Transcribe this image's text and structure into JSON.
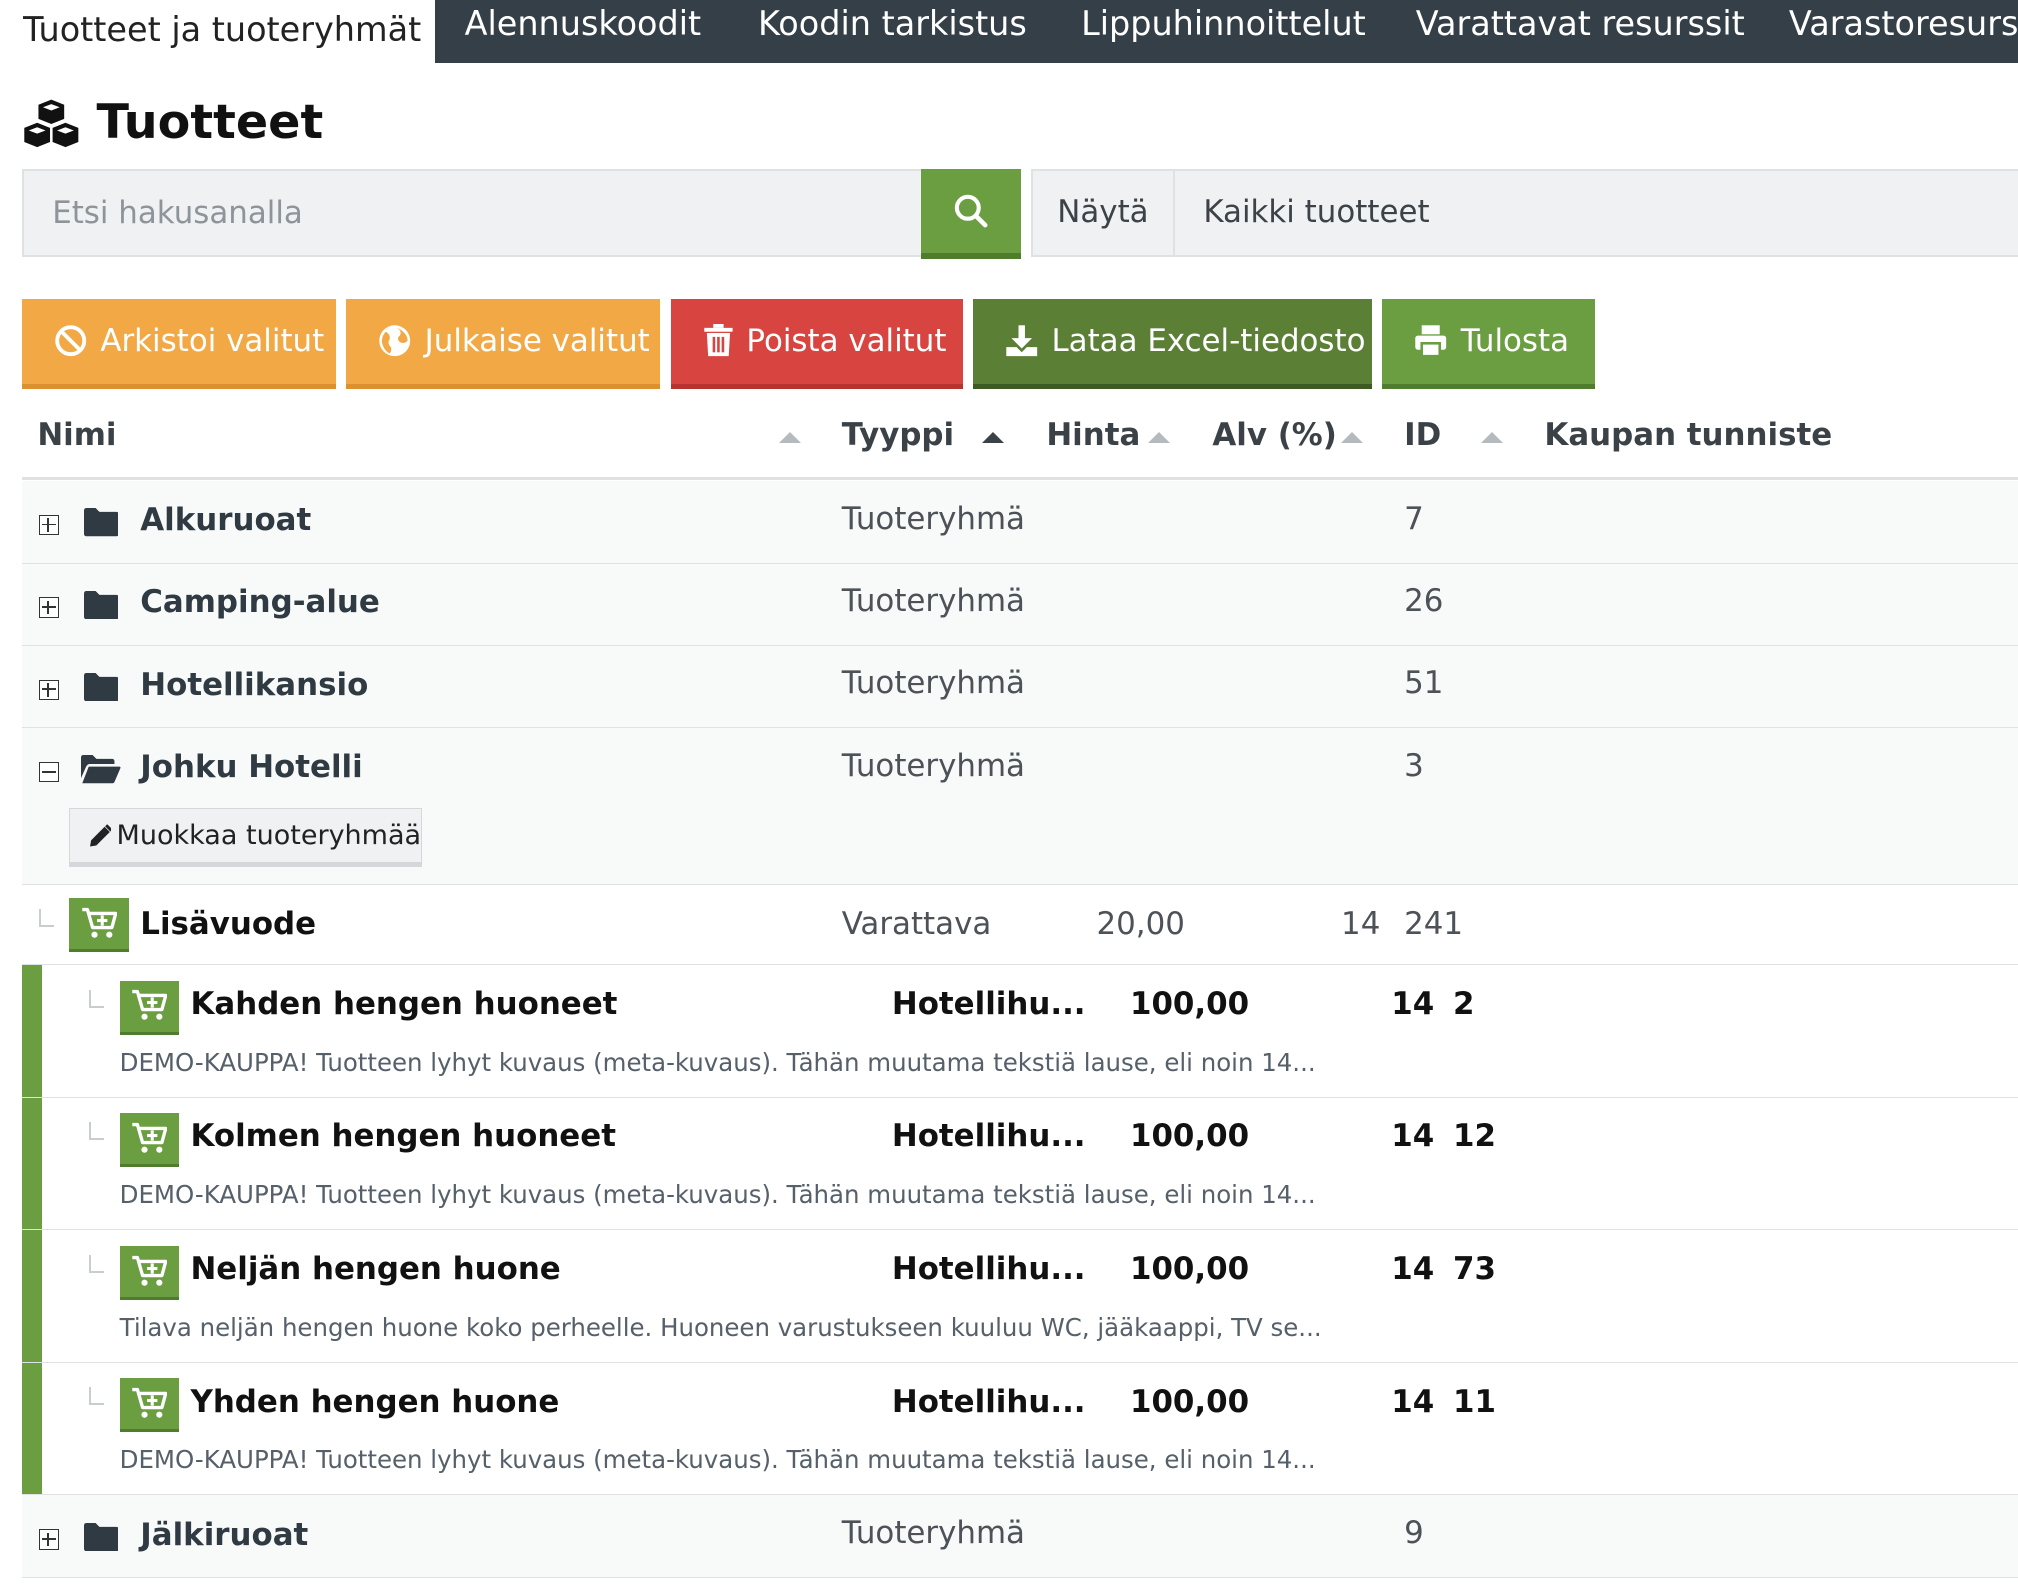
{
  "tabs": [
    {
      "label": "Tuotteet ja tuoteryhmät"
    },
    {
      "label": "Alennuskoodit"
    },
    {
      "label": "Koodin tarkistus"
    },
    {
      "label": "Lippuhinnoittelut"
    },
    {
      "label": "Varattavat resurssit"
    },
    {
      "label": "Varastoresurssit"
    }
  ],
  "page": {
    "title": "Tuotteet"
  },
  "search": {
    "placeholder": "Etsi hakusanalla"
  },
  "filter": {
    "label": "Näytä",
    "selected": "Kaikki tuotteet"
  },
  "actions": {
    "archive": "Arkistoi valitut",
    "publish": "Julkaise valitut",
    "delete": "Poista valitut",
    "excel": "Lataa Excel-tiedosto",
    "print": "Tulosta"
  },
  "columns": {
    "name": "Nimi",
    "type": "Tyyppi",
    "price": "Hinta",
    "vat": "Alv (%)",
    "id": "ID",
    "store_id": "Kaupan tunniste"
  },
  "groups": [
    {
      "name": "Alkuruoat",
      "type": "Tuoteryhmä",
      "id": "7"
    },
    {
      "name": "Camping-alue",
      "type": "Tuoteryhmä",
      "id": "26"
    },
    {
      "name": "Hotellikansio",
      "type": "Tuoteryhmä",
      "id": "51"
    },
    {
      "name": "Johku Hotelli",
      "type": "Tuoteryhmä",
      "id": "3",
      "edit_label": "Muokkaa tuoteryhmää"
    },
    {
      "name": "Jälkiruoat",
      "type": "Tuoteryhmä",
      "id": "9"
    }
  ],
  "extra_bed": {
    "name": "Lisävuode",
    "type": "Varattava",
    "price": "20,00",
    "vat": "14",
    "id": "241"
  },
  "products": [
    {
      "name": "Kahden hengen huoneet",
      "type": "Hotellihu...",
      "price": "100,00",
      "vat": "14",
      "id": "2",
      "description": "DEMO-KAUPPA! Tuotteen lyhyt kuvaus (meta-kuvaus). Tähän muutama tekstiä lause, eli noin 14..."
    },
    {
      "name": "Kolmen hengen huoneet",
      "type": "Hotellihu...",
      "price": "100,00",
      "vat": "14",
      "id": "12",
      "description": "DEMO-KAUPPA! Tuotteen lyhyt kuvaus (meta-kuvaus). Tähän muutama tekstiä lause, eli noin 14..."
    },
    {
      "name": "Neljän hengen huone",
      "type": "Hotellihu...",
      "price": "100,00",
      "vat": "14",
      "id": "73",
      "description": "Tilava neljän hengen huone koko perheelle. Huoneen varustukseen kuuluu WC, jääkaappi, TV se..."
    },
    {
      "name": "Yhden hengen huone",
      "type": "Hotellihu...",
      "price": "100,00",
      "vat": "14",
      "id": "11",
      "description": "DEMO-KAUPPA! Tuotteen lyhyt kuvaus (meta-kuvaus). Tähän muutama tekstiä lause, eli noin 14..."
    }
  ],
  "colors": {
    "accent_green": "#6a9e40",
    "dark_green": "#5a7f35",
    "orange": "#f2a844",
    "red": "#d8443f",
    "tabbar": "#343f47"
  },
  "icons": {
    "title": "cubes-icon",
    "search": "search-icon",
    "archive": "ban-icon",
    "publish": "globe-icon",
    "delete": "trash-icon",
    "excel": "download-icon",
    "print": "print-icon",
    "group": "folder-icon",
    "product": "cart-plus-icon",
    "edit": "pencil-icon"
  }
}
